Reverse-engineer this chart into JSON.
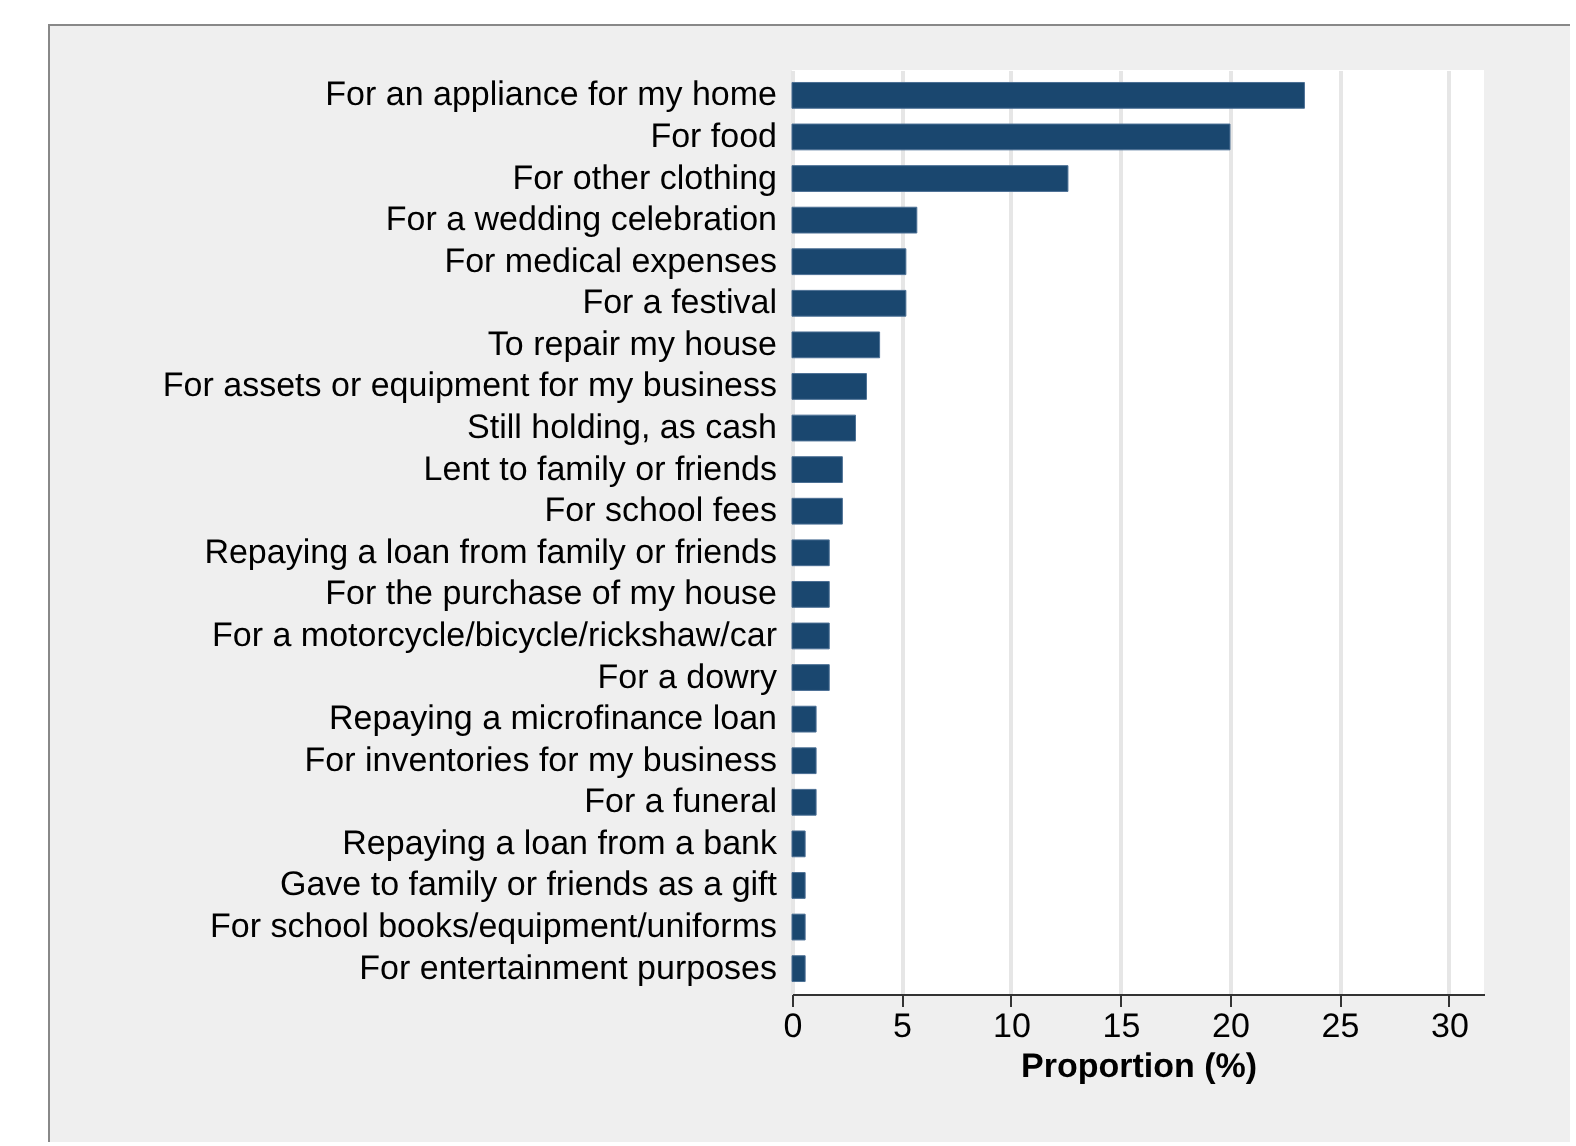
{
  "chart_data": {
    "type": "bar",
    "orientation": "horizontal",
    "xlabel": "Proportion (%)",
    "categories": [
      "For an appliance for my home",
      "For food",
      "For other clothing",
      "For a wedding celebration",
      "For medical expenses",
      "For a festival",
      "To repair my house",
      "For assets or equipment for my business",
      "Still holding, as cash",
      "Lent to family or friends",
      "For school fees",
      "Repaying a loan from family or friends",
      "For the purchase of my house",
      "For a motorcycle/bicycle/rickshaw/car",
      "For a dowry",
      "Repaying a microfinance loan",
      "For inventories for my business",
      "For a funeral",
      "Repaying a loan from a bank",
      "Gave to family or friends as a gift",
      "For school books/equipment/uniforms",
      "For entertainment purposes"
    ],
    "values": [
      23.4,
      20.0,
      12.6,
      5.7,
      5.2,
      5.2,
      4.0,
      3.4,
      2.9,
      2.3,
      2.3,
      1.7,
      1.7,
      1.7,
      1.7,
      1.1,
      1.1,
      1.1,
      0.6,
      0.6,
      0.6,
      0.6
    ],
    "color": "#1a476f",
    "xlim": [
      0,
      31.6
    ],
    "xticks": [
      0,
      5,
      10,
      15,
      20,
      25,
      30
    ],
    "grid": "x"
  }
}
